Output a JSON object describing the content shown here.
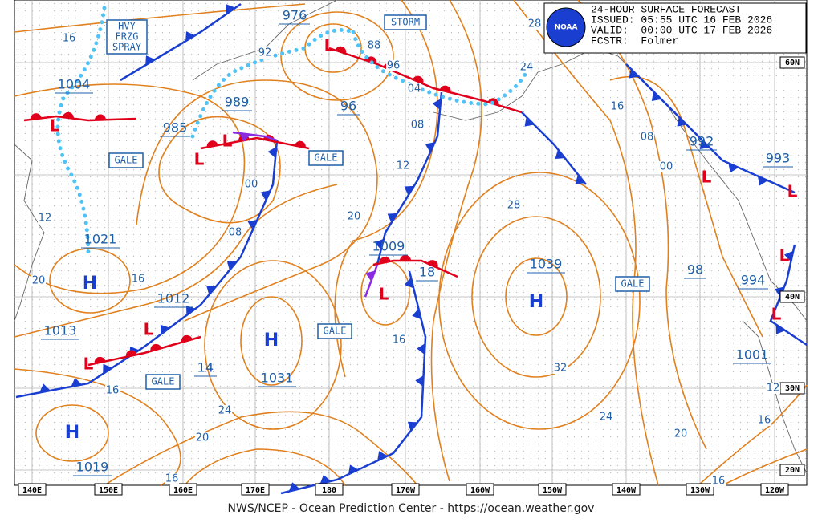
{
  "header": {
    "lines": [
      "24-HOUR SURFACE FORECAST",
      "ISSUED: 05:55 UTC 16 FEB 2026",
      "VALID:  00:00 UTC 17 FEB 2026",
      "FCSTR:  Folmer"
    ]
  },
  "logo": "NOAA",
  "footer": "NWS/NCEP - Ocean Prediction Center - https://ocean.weather.gov",
  "warnings": {
    "spray": [
      "HVY",
      "FRZG",
      "SPRAY"
    ],
    "storm": "STORM",
    "gale": [
      "GALE",
      "GALE",
      "GALE",
      "GALE",
      "GALE"
    ]
  },
  "highs": [
    "H",
    "H",
    "H",
    "H"
  ],
  "lows": [
    "L",
    "L",
    "L",
    "L",
    "L",
    "L",
    "L",
    "L",
    "L",
    "L",
    "L"
  ],
  "center_labels": [
    "976",
    "1004",
    "989",
    "985",
    "96",
    "1021",
    "1012",
    "1013",
    "1009",
    "18",
    "1039",
    "1031",
    "14",
    "1019",
    "992",
    "993",
    "98",
    "994",
    "1001"
  ],
  "isobar_labels": [
    "16",
    "92",
    "88",
    "96",
    "04",
    "08",
    "12",
    "28",
    "24",
    "16",
    "08",
    "00",
    "00",
    "20",
    "08",
    "28",
    "12",
    "20",
    "16",
    "16",
    "32",
    "24",
    "20",
    "16",
    "24",
    "20",
    "16",
    "16",
    "16",
    "12"
  ],
  "lat_labels": [
    "60N",
    "40N",
    "30N",
    "20N"
  ],
  "lon_labels": [
    "140E",
    "150E",
    "160E",
    "170E",
    "180",
    "170W",
    "160W",
    "150W",
    "140W",
    "130W",
    "120W"
  ]
}
